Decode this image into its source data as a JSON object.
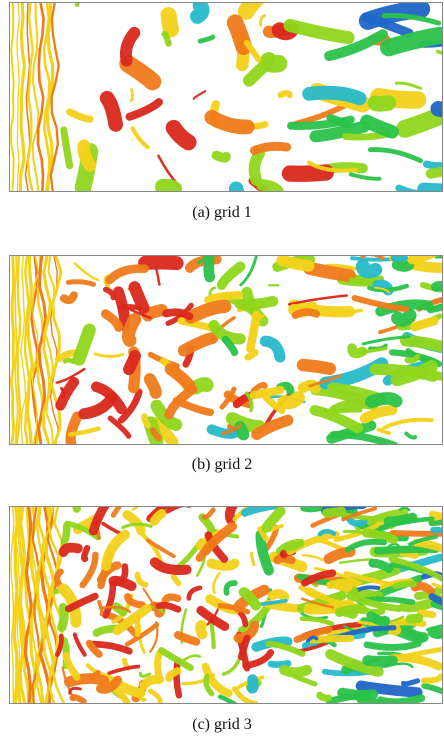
{
  "figure": {
    "panels": [
      {
        "caption": "(a)  grid 1",
        "palette": [
          "#d9281b",
          "#ef7a1a",
          "#f2d21a",
          "#8fd61c",
          "#2bc24a",
          "#27b9c9",
          "#1f66c6"
        ],
        "density": "low"
      },
      {
        "caption": "(b)  grid 2",
        "palette": [
          "#d9281b",
          "#ef7a1a",
          "#f2d21a",
          "#8fd61c",
          "#2bc24a",
          "#27b9c9",
          "#1f66c6"
        ],
        "density": "medium"
      },
      {
        "caption": "(c)  grid 3",
        "palette": [
          "#d9281b",
          "#ef7a1a",
          "#f2d21a",
          "#8fd61c",
          "#2bc24a",
          "#27b9c9",
          "#1f66c6"
        ],
        "density": "high"
      }
    ]
  }
}
